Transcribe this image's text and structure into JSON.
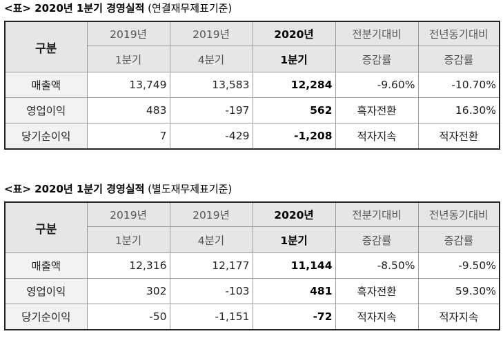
{
  "tables": [
    {
      "title": "<표> 2020년 1분기 경영실적",
      "basis": "(연결재무제표기준)",
      "corner": "구분",
      "header_top": [
        "2019년",
        "2019년",
        "2020년",
        "전분기대비",
        "전년동기대비"
      ],
      "header_bottom": [
        "1분기",
        "4분기",
        "1분기",
        "증감률",
        "증감률"
      ],
      "rows": [
        [
          "매출액",
          "13,749",
          "13,583",
          "12,284",
          "-9.60%",
          "-10.70%"
        ],
        [
          "영업이익",
          "483",
          "-197",
          "562",
          "흑자전환",
          "16.30%"
        ],
        [
          "당기순이익",
          "7",
          "-429",
          "-1,208",
          "적자지속",
          "적자전환"
        ]
      ]
    },
    {
      "title": "<표> 2020년 1분기 경영실적",
      "basis": "(별도재무제표기준)",
      "corner": "구분",
      "header_top": [
        "2019년",
        "2019년",
        "2020년",
        "전분기대비",
        "전년동기대비"
      ],
      "header_bottom": [
        "1분기",
        "4분기",
        "1분기",
        "증감률",
        "증감률"
      ],
      "rows": [
        [
          "매출액",
          "12,316",
          "12,177",
          "11,144",
          "-8.50%",
          "-9.50%"
        ],
        [
          "영업이익",
          "302",
          "-103",
          "481",
          "흑자전환",
          "59.30%"
        ],
        [
          "당기순이익",
          "-50",
          "-1,151",
          "-72",
          "적자지속",
          "적자지속"
        ]
      ]
    }
  ]
}
